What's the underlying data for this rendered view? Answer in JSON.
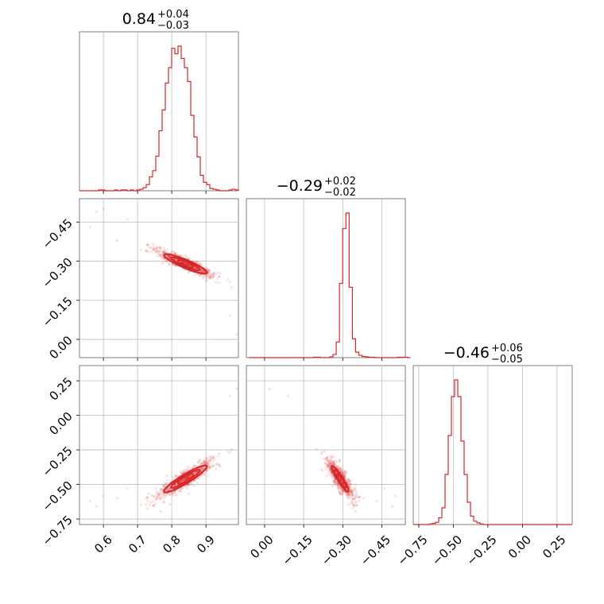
{
  "chart_data": {
    "type": "corner",
    "color": "#d62728",
    "grid": true,
    "params": [
      {
        "title": {
          "value": "0.84",
          "plus": "+0.04",
          "minus": "−0.03"
        },
        "range": [
          0.53,
          0.995
        ],
        "ticks": [
          0.6,
          0.7,
          0.8,
          0.9
        ],
        "tick_labels": [
          "0.6",
          "0.7",
          "0.8",
          "0.9"
        ],
        "hist": {
          "bin_edges": [
            0.53,
            0.5393,
            0.5486,
            0.5579,
            0.5672,
            0.5765,
            0.5858,
            0.5951,
            0.6044,
            0.6137,
            0.623,
            0.6323,
            0.6416,
            0.6509,
            0.6602,
            0.6695,
            0.6788,
            0.6881,
            0.6974,
            0.7067,
            0.716,
            0.7253,
            0.7346,
            0.7439,
            0.7532,
            0.7625,
            0.7718,
            0.7811,
            0.7904,
            0.7997,
            0.809,
            0.8183,
            0.8276,
            0.8369,
            0.8462,
            0.8555,
            0.8648,
            0.8741,
            0.8834,
            0.8927,
            0.902,
            0.9113,
            0.9206,
            0.9299,
            0.9392,
            0.9485,
            0.9578,
            0.9671,
            0.9764,
            0.9857,
            0.995
          ],
          "counts": [
            0,
            0,
            0,
            0,
            0,
            0,
            1,
            1,
            0,
            0,
            0,
            1,
            0,
            1,
            1,
            0,
            1,
            0,
            1,
            2,
            4,
            8,
            18,
            26,
            45,
            78,
            105,
            140,
            160,
            185,
            178,
            188,
            172,
            160,
            142,
            98,
            70,
            44,
            20,
            11,
            8,
            3,
            2,
            1,
            0,
            0,
            0,
            1,
            2,
            1
          ]
        }
      },
      {
        "title": {
          "value": "−0.29",
          "plus": "+0.02",
          "minus": "−0.02"
        },
        "range": [
          0.07,
          -0.54
        ],
        "ticks": [
          0.0,
          -0.15,
          -0.3,
          -0.45
        ],
        "tick_labels": [
          "0.00",
          "−0.15",
          "−0.30",
          "−0.45"
        ],
        "hist": {
          "bin_edges": [
            -0.56,
            -0.5476,
            -0.5352,
            -0.5228,
            -0.5104,
            -0.498,
            -0.4856,
            -0.4732,
            -0.4608,
            -0.4484,
            -0.436,
            -0.4236,
            -0.4112,
            -0.3988,
            -0.3864,
            -0.374,
            -0.3616,
            -0.3492,
            -0.3368,
            -0.3244,
            -0.312,
            -0.2996,
            -0.2872,
            -0.2748,
            -0.2624,
            -0.25,
            -0.2376,
            -0.2252,
            -0.2128,
            -0.2004,
            -0.188,
            -0.1756,
            -0.1632,
            -0.1508,
            -0.1384,
            -0.126,
            -0.1136,
            -0.1012,
            -0.0888,
            -0.0764,
            -0.064,
            -0.0516,
            -0.0392,
            -0.0268,
            -0.0144,
            -0.002,
            0.0104,
            0.0228,
            0.0352,
            0.0476,
            0.06
          ],
          "counts": [
            0,
            1,
            1,
            1,
            0,
            0,
            0,
            0,
            0,
            0,
            0,
            1,
            1,
            2,
            3,
            6,
            14,
            48,
            180,
            370,
            330,
            190,
            40,
            8,
            2,
            0,
            0,
            0,
            1,
            1,
            0,
            0,
            0,
            0,
            0,
            0,
            0,
            0,
            0,
            0,
            0,
            0,
            0,
            0,
            0,
            0,
            0,
            0,
            0,
            0
          ]
        }
      },
      {
        "title": {
          "value": "−0.46",
          "plus": "+0.06",
          "minus": "−0.05"
        },
        "range": [
          -0.79,
          0.36
        ],
        "ticks": [
          -0.75,
          -0.5,
          -0.25,
          0.0,
          0.25
        ],
        "tick_labels": [
          "−0.75",
          "−0.50",
          "−0.25",
          "0.00",
          "0.25"
        ],
        "hist": {
          "bin_edges": [
            -0.79,
            -0.767,
            -0.744,
            -0.721,
            -0.698,
            -0.675,
            -0.652,
            -0.629,
            -0.606,
            -0.583,
            -0.56,
            -0.537,
            -0.514,
            -0.491,
            -0.468,
            -0.445,
            -0.422,
            -0.399,
            -0.376,
            -0.353,
            -0.33,
            -0.307,
            -0.284,
            -0.261,
            -0.238,
            -0.215,
            -0.192,
            -0.169,
            -0.146,
            -0.123,
            -0.1,
            -0.077,
            -0.054,
            -0.031,
            -0.008,
            0.015,
            0.038,
            0.061,
            0.084,
            0.107,
            0.13,
            0.153,
            0.176,
            0.199,
            0.222,
            0.245,
            0.268,
            0.291,
            0.314,
            0.337,
            0.36
          ],
          "counts": [
            0,
            0,
            0,
            0,
            0,
            1,
            2,
            4,
            12,
            30,
            90,
            160,
            230,
            260,
            230,
            150,
            90,
            40,
            15,
            6,
            3,
            1,
            0,
            0,
            0,
            0,
            0,
            0,
            0,
            0,
            0,
            0,
            0,
            0,
            0,
            0,
            0,
            0,
            0,
            0,
            0,
            0,
            0,
            0,
            0,
            0,
            0,
            0,
            0,
            0
          ]
        }
      }
    ]
  }
}
